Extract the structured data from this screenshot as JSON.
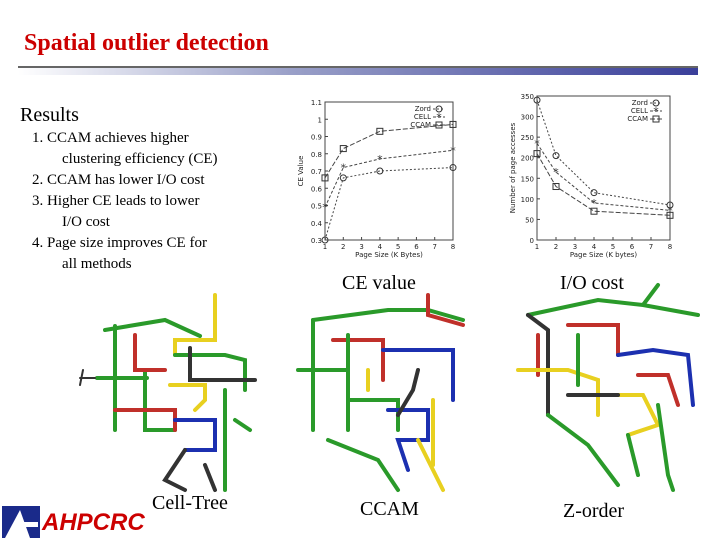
{
  "slide": {
    "title": "Spatial outlier detection",
    "heading": "Results",
    "points": [
      {
        "line1": "1. CCAM achieves higher",
        "line2": "clustering efficiency (CE)"
      },
      {
        "line1": "2. CCAM has lower I/O cost",
        "line2": ""
      },
      {
        "line1": "3. Higher CE leads to lower",
        "line2": "I/O cost"
      },
      {
        "line1": "4. Page size improves CE for",
        "line2": "all methods"
      }
    ]
  },
  "captions": {
    "ce": "CE value",
    "io": "I/O cost",
    "cell_tree": "Cell-Tree",
    "ccam": "CCAM",
    "z_order": "Z-order"
  },
  "logo": {
    "text": "AHPCRC",
    "color": "#cc0000",
    "mark_color": "#1a2a8a"
  },
  "chart_data": [
    {
      "type": "line",
      "xlabel": "Page Size (K Bytes)",
      "ylabel": "CE Value",
      "x": [
        1,
        2,
        4,
        8
      ],
      "ylim": [
        0.3,
        1.1
      ],
      "yticks": [
        0.3,
        0.4,
        0.5,
        0.6,
        0.7,
        0.8,
        0.9,
        1.0,
        1.1
      ],
      "xticks": [
        1,
        2,
        3,
        4,
        5,
        6,
        7,
        8
      ],
      "series": [
        {
          "name": "Zord",
          "marker": "o",
          "values": [
            0.3,
            0.66,
            0.7,
            0.72
          ]
        },
        {
          "name": "CELL",
          "marker": "*",
          "values": [
            0.49,
            0.72,
            0.77,
            0.82
          ]
        },
        {
          "name": "CCAM",
          "marker": "s",
          "values": [
            0.66,
            0.83,
            0.93,
            0.97
          ]
        }
      ]
    },
    {
      "type": "line",
      "xlabel": "Page Size (K bytes)",
      "ylabel": "Number of page accesses",
      "x": [
        1,
        2,
        4,
        8
      ],
      "ylim": [
        0,
        350
      ],
      "yticks": [
        0,
        50,
        100,
        150,
        200,
        250,
        300,
        350
      ],
      "xticks": [
        1,
        2,
        3,
        4,
        5,
        6,
        7,
        8
      ],
      "series": [
        {
          "name": "Zord",
          "marker": "o",
          "values": [
            340,
            205,
            115,
            85
          ]
        },
        {
          "name": "CELL",
          "marker": "*",
          "values": [
            235,
            165,
            90,
            72
          ]
        },
        {
          "name": "CCAM",
          "marker": "s",
          "values": [
            210,
            130,
            70,
            60
          ]
        }
      ]
    }
  ]
}
